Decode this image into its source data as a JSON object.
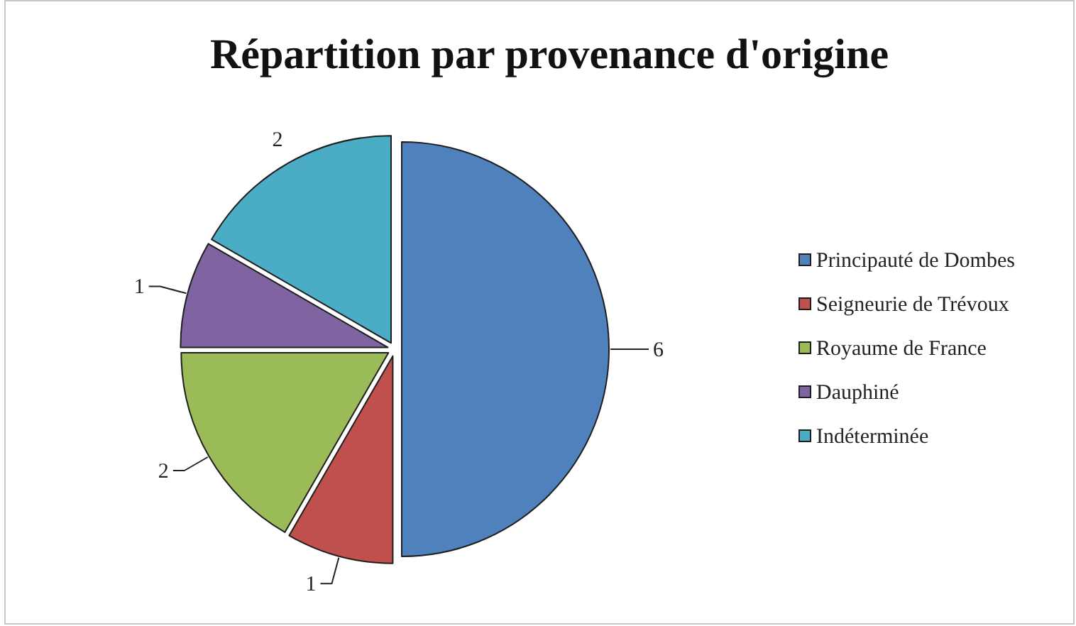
{
  "chart_data": {
    "type": "pie",
    "title": "Répartition par provenance d'origine",
    "categories": [
      "Principauté de Dombes",
      "Seigneurie de Trévoux",
      "Royaume de France",
      "Dauphiné",
      "Indéterminée"
    ],
    "values": [
      6,
      1,
      2,
      1,
      2
    ],
    "colors": [
      "#4f81bd",
      "#c0504d",
      "#9bbb59",
      "#8064a2",
      "#4bacc6"
    ],
    "data_labels": true,
    "legend": "right"
  }
}
